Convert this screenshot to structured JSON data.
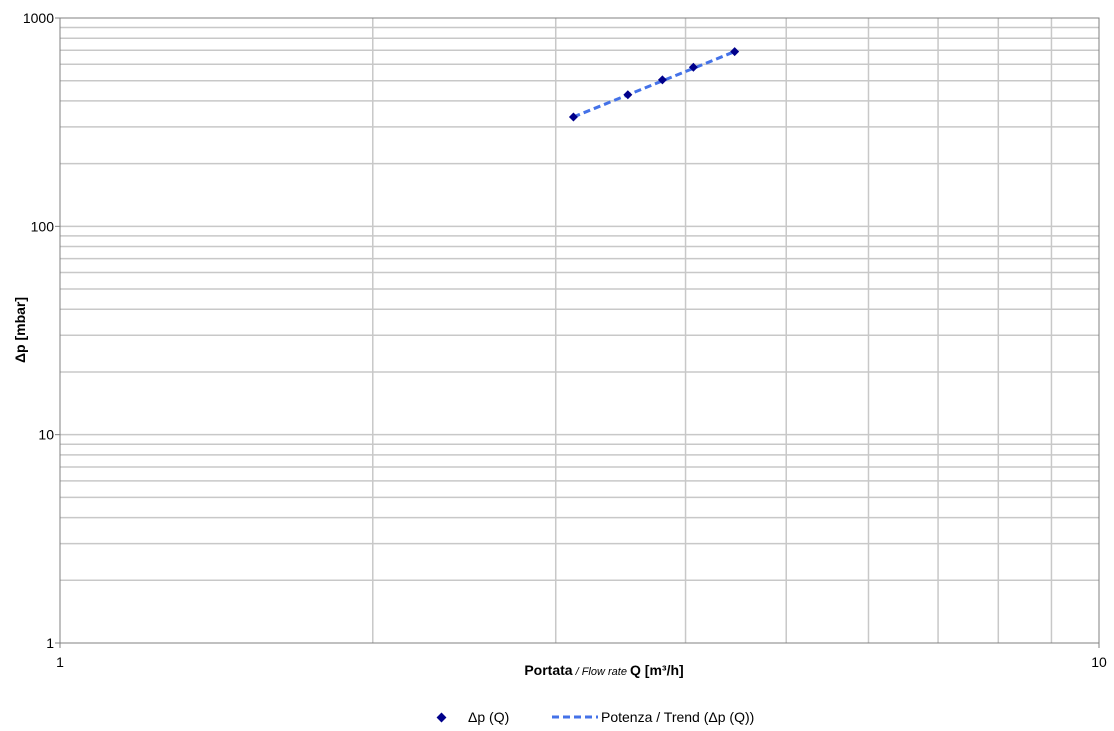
{
  "chart_data": {
    "type": "scatter",
    "x_scale": "log",
    "y_scale": "log",
    "xlim": [
      1,
      10
    ],
    "ylim": [
      1,
      1000
    ],
    "x_ticks": [
      1,
      10
    ],
    "y_ticks": [
      1,
      10,
      100,
      1000
    ],
    "x_tick_labels": [
      "1",
      "10"
    ],
    "y_tick_labels": [
      "1",
      "10",
      "100",
      "1000"
    ],
    "grid": true,
    "xlabel_bold_1": "Portata",
    "xlabel_italic": " / Flow rate ",
    "xlabel_bold_2": "Q [m³/h]",
    "ylabel": "Δp [mbar]",
    "legend_position": "bottom",
    "series": [
      {
        "name": "Δp (Q)",
        "kind": "markers",
        "marker": "diamond",
        "color": "#00008B",
        "x": [
          3.12,
          3.52,
          3.8,
          4.07,
          4.46
        ],
        "y": [
          335,
          428,
          505,
          580,
          690
        ]
      },
      {
        "name": "Potenza / Trend (Δp (Q))",
        "kind": "trendline",
        "line_style": "dashed",
        "color": "#4472E8",
        "x": [
          3.12,
          4.46
        ],
        "y": [
          335,
          690
        ]
      }
    ]
  }
}
